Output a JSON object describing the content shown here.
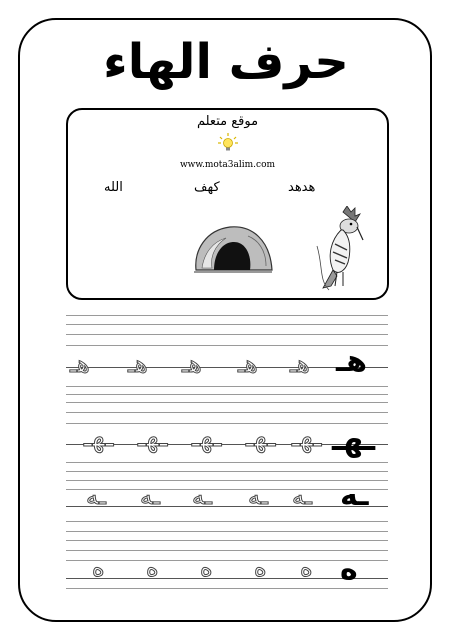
{
  "title": "حرف الهاء",
  "brand": {
    "name": "موقع متعلم",
    "url": "www.mota3alim.com"
  },
  "vocabulary": {
    "words": [
      "هدهد",
      "كهف",
      "الله"
    ],
    "pictures": [
      "hoopoe-bird",
      "cave"
    ]
  },
  "practice_rows": [
    {
      "model": "هـ",
      "trace": "هـ",
      "trace_count": 5
    },
    {
      "model": "ـهـ",
      "trace": "ـهـ",
      "trace_count": 5
    },
    {
      "model": "ـه",
      "trace": "ـه",
      "trace_count": 5
    },
    {
      "model": "ه",
      "trace": "ه",
      "trace_count": 5
    }
  ]
}
